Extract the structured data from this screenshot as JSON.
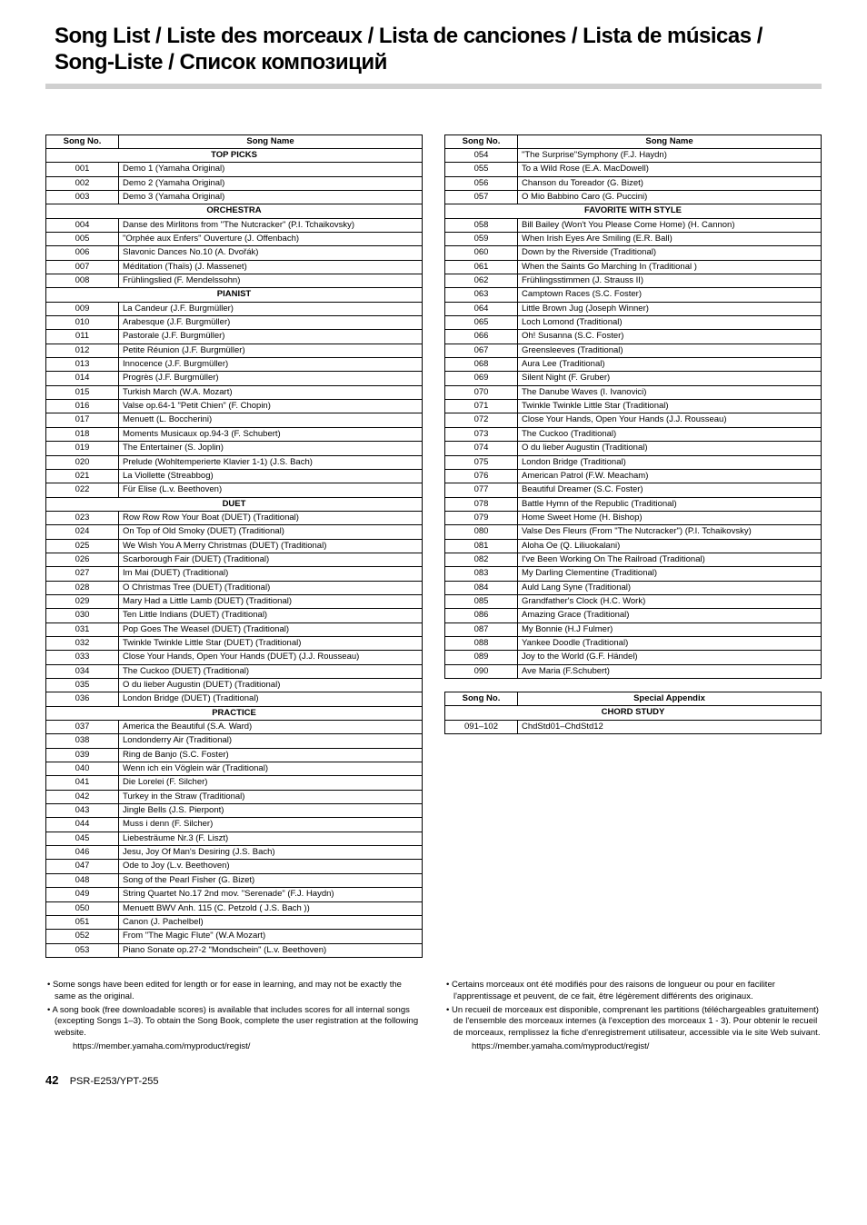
{
  "title_line1": "Song List / Liste des morceaux / Lista de canciones / Lista de músicas /",
  "title_line2": "Song-Liste / Список композиций",
  "header_no": "Song No.",
  "header_name": "Song Name",
  "header_special": "Special Appendix",
  "sections_left": [
    {
      "title": "TOP PICKS",
      "rows": [
        [
          "001",
          "Demo 1 (Yamaha Original)"
        ],
        [
          "002",
          "Demo 2 (Yamaha Original)"
        ],
        [
          "003",
          "Demo 3 (Yamaha Original)"
        ]
      ]
    },
    {
      "title": "ORCHESTRA",
      "rows": [
        [
          "004",
          "Danse des Mirlitons from \"The Nutcracker\" (P.I. Tchaikovsky)"
        ],
        [
          "005",
          "\"Orphée aux Enfers\" Ouverture (J. Offenbach)"
        ],
        [
          "006",
          "Slavonic Dances No.10 (A. Dvořák)"
        ],
        [
          "007",
          "Méditation (Thaïs) (J. Massenet)"
        ],
        [
          "008",
          "Frühlingslied (F. Mendelssohn)"
        ]
      ]
    },
    {
      "title": "PIANIST",
      "rows": [
        [
          "009",
          "La Candeur (J.F. Burgmüller)"
        ],
        [
          "010",
          "Arabesque (J.F. Burgmüller)"
        ],
        [
          "011",
          "Pastorale (J.F. Burgmüller)"
        ],
        [
          "012",
          "Petite Réunion (J.F. Burgmüller)"
        ],
        [
          "013",
          "Innocence (J.F. Burgmüller)"
        ],
        [
          "014",
          "Progrès (J.F. Burgmüller)"
        ],
        [
          "015",
          "Turkish March (W.A. Mozart)"
        ],
        [
          "016",
          "Valse op.64-1 \"Petit Chien\" (F. Chopin)"
        ],
        [
          "017",
          "Menuett (L. Boccherini)"
        ],
        [
          "018",
          "Moments Musicaux op.94-3 (F. Schubert)"
        ],
        [
          "019",
          "The Entertainer (S. Joplin)"
        ],
        [
          "020",
          "Prelude (Wohltemperierte Klavier 1-1) (J.S. Bach)"
        ],
        [
          "021",
          "La Viollette (Streabbog)"
        ],
        [
          "022",
          "Für Elise (L.v. Beethoven)"
        ]
      ]
    },
    {
      "title": "DUET",
      "rows": [
        [
          "023",
          "Row Row Row Your Boat (DUET) (Traditional)"
        ],
        [
          "024",
          "On Top of Old Smoky (DUET) (Traditional)"
        ],
        [
          "025",
          "We Wish You A Merry Christmas (DUET) (Traditional)"
        ],
        [
          "026",
          "Scarborough Fair (DUET) (Traditional)"
        ],
        [
          "027",
          "Im Mai (DUET) (Traditional)"
        ],
        [
          "028",
          "O Christmas Tree (DUET) (Traditional)"
        ],
        [
          "029",
          "Mary Had a Little Lamb (DUET) (Traditional)"
        ],
        [
          "030",
          "Ten Little Indians (DUET) (Traditional)"
        ],
        [
          "031",
          "Pop Goes The Weasel (DUET) (Traditional)"
        ],
        [
          "032",
          "Twinkle Twinkle Little Star (DUET) (Traditional)"
        ],
        [
          "033",
          "Close Your Hands, Open Your Hands (DUET) (J.J. Rousseau)"
        ],
        [
          "034",
          "The Cuckoo (DUET) (Traditional)"
        ],
        [
          "035",
          "O du lieber Augustin (DUET) (Traditional)"
        ],
        [
          "036",
          "London Bridge (DUET) (Traditional)"
        ]
      ]
    },
    {
      "title": "PRACTICE",
      "rows": [
        [
          "037",
          "America the Beautiful (S.A. Ward)"
        ],
        [
          "038",
          "Londonderry Air (Traditional)"
        ],
        [
          "039",
          "Ring de Banjo (S.C. Foster)"
        ],
        [
          "040",
          "Wenn ich ein Vöglein wär (Traditional)"
        ],
        [
          "041",
          "Die Lorelei (F. Silcher)"
        ],
        [
          "042",
          "Turkey in the Straw (Traditional)"
        ],
        [
          "043",
          "Jingle Bells (J.S. Pierpont)"
        ],
        [
          "044",
          "Muss i denn (F. Silcher)"
        ],
        [
          "045",
          "Liebesträume Nr.3 (F. Liszt)"
        ],
        [
          "046",
          "Jesu, Joy Of Man's Desiring (J.S. Bach)"
        ],
        [
          "047",
          "Ode to Joy (L.v. Beethoven)"
        ],
        [
          "048",
          "Song of the Pearl Fisher (G. Bizet)"
        ],
        [
          "049",
          "String Quartet No.17 2nd mov. \"Serenade\" (F.J. Haydn)"
        ],
        [
          "050",
          "Menuett BWV Anh. 115 (C. Petzold ( J.S. Bach ))"
        ],
        [
          "051",
          "Canon (J. Pachelbel)"
        ],
        [
          "052",
          "From \"The Magic Flute\" (W.A Mozart)"
        ],
        [
          "053",
          "Piano Sonate op.27-2 \"Mondschein\" (L.v. Beethoven)"
        ]
      ]
    }
  ],
  "right_pre_rows": [
    [
      "054",
      "\"The Surprise\"Symphony (F.J. Haydn)"
    ],
    [
      "055",
      "To a Wild Rose (E.A. MacDowell)"
    ],
    [
      "056",
      "Chanson du Toreador (G. Bizet)"
    ],
    [
      "057",
      "O Mio Babbino Caro (G. Puccini)"
    ]
  ],
  "sections_right": [
    {
      "title": "FAVORITE WITH STYLE",
      "rows": [
        [
          "058",
          "Bill Bailey (Won't You Please Come Home) (H. Cannon)"
        ],
        [
          "059",
          "When Irish Eyes Are Smiling (E.R. Ball)"
        ],
        [
          "060",
          "Down by the Riverside (Traditional)"
        ],
        [
          "061",
          "When the Saints Go Marching In (Traditional )"
        ],
        [
          "062",
          "Frühlingsstimmen (J. Strauss II)"
        ],
        [
          "063",
          "Camptown Races (S.C. Foster)"
        ],
        [
          "064",
          "Little Brown Jug (Joseph Winner)"
        ],
        [
          "065",
          "Loch Lomond (Traditional)"
        ],
        [
          "066",
          "Oh! Susanna (S.C. Foster)"
        ],
        [
          "067",
          "Greensleeves (Traditional)"
        ],
        [
          "068",
          "Aura Lee (Traditional)"
        ],
        [
          "069",
          "Silent Night (F. Gruber)"
        ],
        [
          "070",
          "The Danube Waves (I. Ivanovici)"
        ],
        [
          "071",
          "Twinkle Twinkle Little Star (Traditional)"
        ],
        [
          "072",
          "Close Your Hands, Open Your Hands (J.J. Rousseau)"
        ],
        [
          "073",
          "The Cuckoo (Traditional)"
        ],
        [
          "074",
          "O du lieber Augustin (Traditional)"
        ],
        [
          "075",
          "London Bridge (Traditional)"
        ],
        [
          "076",
          "American Patrol (F.W. Meacham)"
        ],
        [
          "077",
          "Beautiful Dreamer (S.C. Foster)"
        ],
        [
          "078",
          "Battle Hymn of the Republic (Traditional)"
        ],
        [
          "079",
          "Home Sweet Home (H. Bishop)"
        ],
        [
          "080",
          "Valse Des Fleurs (From \"The Nutcracker\") (P.I. Tchaikovsky)"
        ],
        [
          "081",
          "Aloha Oe (Q. Liliuokalani)"
        ],
        [
          "082",
          "I've Been Working On The Railroad (Traditional)"
        ],
        [
          "083",
          "My Darling Clementine (Traditional)"
        ],
        [
          "084",
          "Auld Lang Syne (Traditional)"
        ],
        [
          "085",
          "Grandfather's Clock (H.C. Work)"
        ],
        [
          "086",
          "Amazing Grace (Traditional)"
        ],
        [
          "087",
          "My Bonnie (H.J Fulmer)"
        ],
        [
          "088",
          "Yankee Doodle (Traditional)"
        ],
        [
          "089",
          "Joy to the World (G.F. Händel)"
        ],
        [
          "090",
          "Ave Maria (F.Schubert)"
        ]
      ]
    }
  ],
  "appendix_section": "CHORD STUDY",
  "appendix_row": [
    "091–102",
    "ChdStd01–ChdStd12"
  ],
  "notes_left": [
    "• Some songs have been edited for length or for ease in learning, and may not be exactly the same as the original.",
    "• A song book (free downloadable scores) is available that includes scores for all internal songs (excepting Songs 1–3). To obtain the Song Book, complete the user registration at the following website."
  ],
  "notes_left_url": "https://member.yamaha.com/myproduct/regist/",
  "notes_right": [
    "• Certains morceaux ont été modifiés pour des raisons de longueur ou pour en faciliter l'apprentissage et peuvent, de ce fait, être légèrement différents des originaux.",
    "• Un recueil de morceaux est disponible, comprenant les partitions (téléchargeables gratuitement) de l'ensemble des morceaux internes (à l'exception des morceaux 1 - 3). Pour obtenir le recueil de morceaux, remplissez la fiche d'enregistrement utilisateur, accessible via le site Web suivant."
  ],
  "notes_right_url": "https://member.yamaha.com/myproduct/regist/",
  "page_number": "42",
  "page_model": "PSR-E253/YPT-255"
}
